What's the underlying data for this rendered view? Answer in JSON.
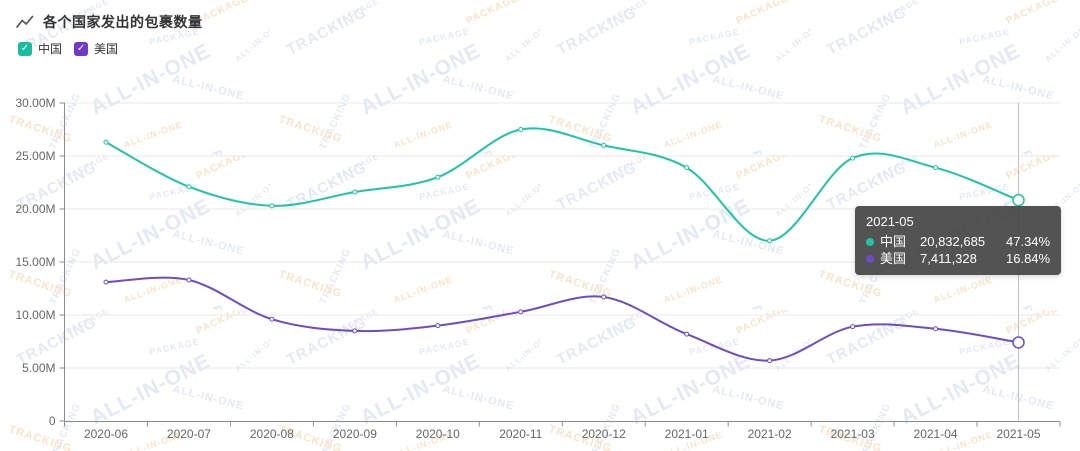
{
  "header": {
    "title": "各个国家发出的包裹数量"
  },
  "legend": {
    "items": [
      {
        "label": "中国",
        "color": "#17BD9D",
        "checked": true
      },
      {
        "label": "美国",
        "color": "#7437C9",
        "checked": true
      }
    ],
    "check_glyph": "✓"
  },
  "chart_data": {
    "type": "line",
    "title": "各个国家发出的包裹数量",
    "categories": [
      "2020-06",
      "2020-07",
      "2020-08",
      "2020-09",
      "2020-10",
      "2020-11",
      "2020-12",
      "2021-01",
      "2021-02",
      "2021-03",
      "2021-04",
      "2021-05"
    ],
    "series": [
      {
        "name": "中国",
        "color": "#1EC5A5",
        "values": [
          26300000,
          22100000,
          20300000,
          21600000,
          23000000,
          27500000,
          26000000,
          23900000,
          17000000,
          24800000,
          23900000,
          20832685
        ]
      },
      {
        "name": "美国",
        "color": "#6C4DC6",
        "values": [
          13100000,
          13300000,
          9600000,
          8500000,
          9000000,
          10300000,
          11700000,
          8200000,
          5700000,
          8900000,
          8700000,
          7411328
        ]
      }
    ],
    "xlabel": "",
    "ylabel": "",
    "ylim": [
      0,
      30000000
    ],
    "y_tick_labels": [
      "30.00M",
      "25.00M",
      "20.00M",
      "15.00M",
      "10.00M",
      "5.00M",
      "0"
    ],
    "grid": true,
    "smooth": true,
    "legend_position": "top-left",
    "highlight_category": "2021-05",
    "highlight_index": 11
  },
  "tooltip": {
    "title": "2021-05",
    "rows": [
      {
        "name": "中国",
        "value": "20,832,685",
        "percent": "47.34%",
        "color": "#1EC5A5"
      },
      {
        "name": "美国",
        "value": "7,411,328",
        "percent": "16.84%",
        "color": "#6C4DC6"
      }
    ]
  },
  "watermark": {
    "words": [
      "TRACKING",
      "ALL-IN-ONE",
      "PACKAGE"
    ],
    "colors": {
      "blue": "#E3EAF6",
      "orange": "#FAE4C9"
    }
  },
  "axis_colors": {
    "axis_line": "#8C8C8C",
    "grid_line": "#E9E9E9",
    "label": "#666666",
    "crosshair": "#BFBFBF"
  }
}
